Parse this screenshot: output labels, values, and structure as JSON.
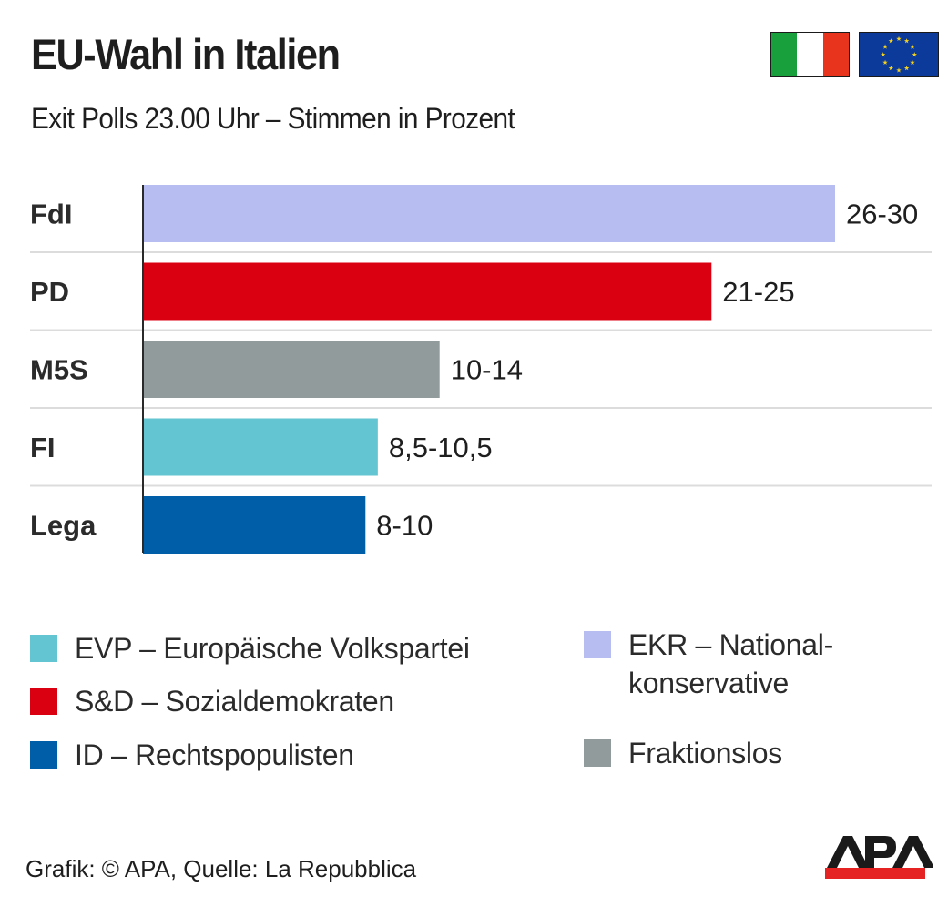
{
  "header": {
    "title": "EU-Wahl in Italien",
    "subtitle": "Exit Polls 23.00 Uhr – Stimmen in Prozent",
    "flags": [
      "italy-flag",
      "eu-flag"
    ]
  },
  "chart_data": {
    "type": "bar",
    "orientation": "horizontal",
    "title": "EU-Wahl in Italien",
    "subtitle": "Exit Polls 23.00 Uhr – Stimmen in Prozent",
    "xlabel": "",
    "ylabel": "",
    "unit": "Prozent",
    "categories": [
      "FdI",
      "PD",
      "M5S",
      "FI",
      "Lega"
    ],
    "value_labels": [
      "26-30",
      "21-25",
      "10-14",
      "8,5-10,5",
      "8-10"
    ],
    "ranges": [
      [
        26,
        30
      ],
      [
        21,
        25
      ],
      [
        10,
        14
      ],
      [
        8.5,
        10.5
      ],
      [
        8,
        10
      ]
    ],
    "values": [
      28,
      23,
      12,
      9.5,
      9
    ],
    "colors": [
      "#b8bdf1",
      "#db0011",
      "#929b9b",
      "#62c5d1",
      "#005ea8"
    ],
    "groups": [
      "EKR",
      "S&D",
      "Fraktionslos",
      "EVP",
      "ID"
    ],
    "xlim": [
      0,
      30
    ],
    "grid": false,
    "legend_placement": "bottom"
  },
  "legend": {
    "items": [
      {
        "label": "EVP – Europäische Volkspartei",
        "color": "#62c5d1"
      },
      {
        "label": "S&D – Sozialdemokraten",
        "color": "#db0011"
      },
      {
        "label": "ID – Rechtspopulisten",
        "color": "#005ea8"
      },
      {
        "label": "EKR – National-",
        "label2": "konservative",
        "color": "#b8bdf1"
      },
      {
        "label": "Fraktionslos",
        "color": "#929b9b"
      }
    ]
  },
  "footer": {
    "credit": "Grafik: © APA, Quelle: La Repubblica",
    "logo_text": "APA"
  },
  "colors": {
    "logo_black": "#1a1a1a",
    "logo_red": "#e42322",
    "italy_green": "#17a03b",
    "italy_white": "#ffffff",
    "italy_red": "#e8341c",
    "eu_blue": "#0c3a9a",
    "eu_star": "#f6d21a"
  }
}
